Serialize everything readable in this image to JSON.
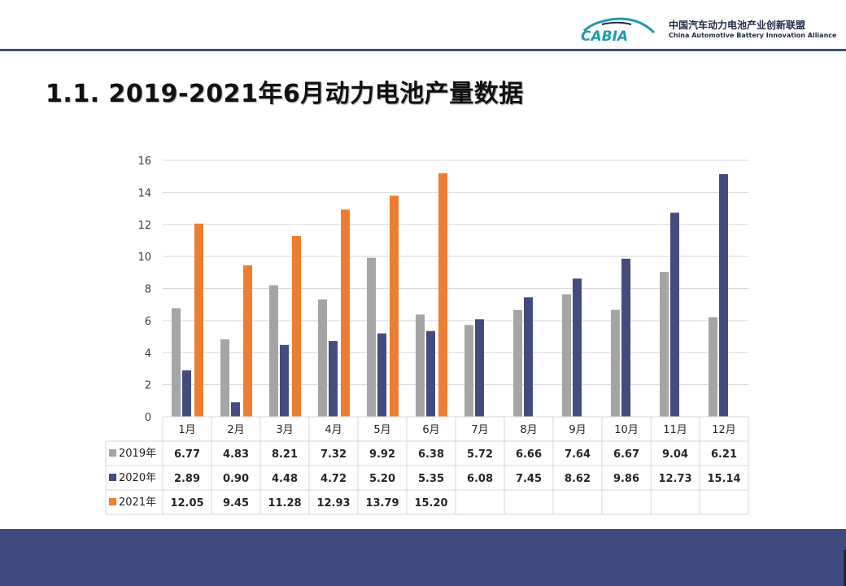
{
  "header": {
    "title": "1.1. 2019-2021年6月动力电池产量数据",
    "logo_text": "CABIA",
    "org_name_cn": "中国汽车动力电池产业创新联盟",
    "org_name_en": "China Automotive Battery Innovation Alliance"
  },
  "colors": {
    "accent_bar": "#3f4a7e",
    "series_2019": "#a5a5a5",
    "series_2020": "#444c7e",
    "series_2021": "#ed7d31",
    "logo_teal": "#1f9bb3"
  },
  "chart_data": {
    "type": "bar",
    "title": "",
    "xlabel": "",
    "ylabel": "",
    "ylim": [
      0,
      16
    ],
    "yticks": [
      0,
      2,
      4,
      6,
      8,
      10,
      12,
      14,
      16
    ],
    "grid": true,
    "legend": "data-table",
    "categories": [
      "1月",
      "2月",
      "3月",
      "4月",
      "5月",
      "6月",
      "7月",
      "8月",
      "9月",
      "10月",
      "11月",
      "12月"
    ],
    "series": [
      {
        "name": "2019年",
        "color": "#a5a5a5",
        "values": [
          6.77,
          4.83,
          8.21,
          7.32,
          9.92,
          6.38,
          5.72,
          6.66,
          7.64,
          6.67,
          9.04,
          6.21
        ]
      },
      {
        "name": "2020年",
        "color": "#444c7e",
        "values": [
          2.89,
          0.9,
          4.48,
          4.72,
          5.2,
          5.35,
          6.08,
          7.45,
          8.62,
          9.86,
          12.73,
          15.14
        ]
      },
      {
        "name": "2021年",
        "color": "#ed7d31",
        "values": [
          12.05,
          9.45,
          11.28,
          12.93,
          13.79,
          15.2,
          null,
          null,
          null,
          null,
          null,
          null
        ]
      }
    ]
  }
}
